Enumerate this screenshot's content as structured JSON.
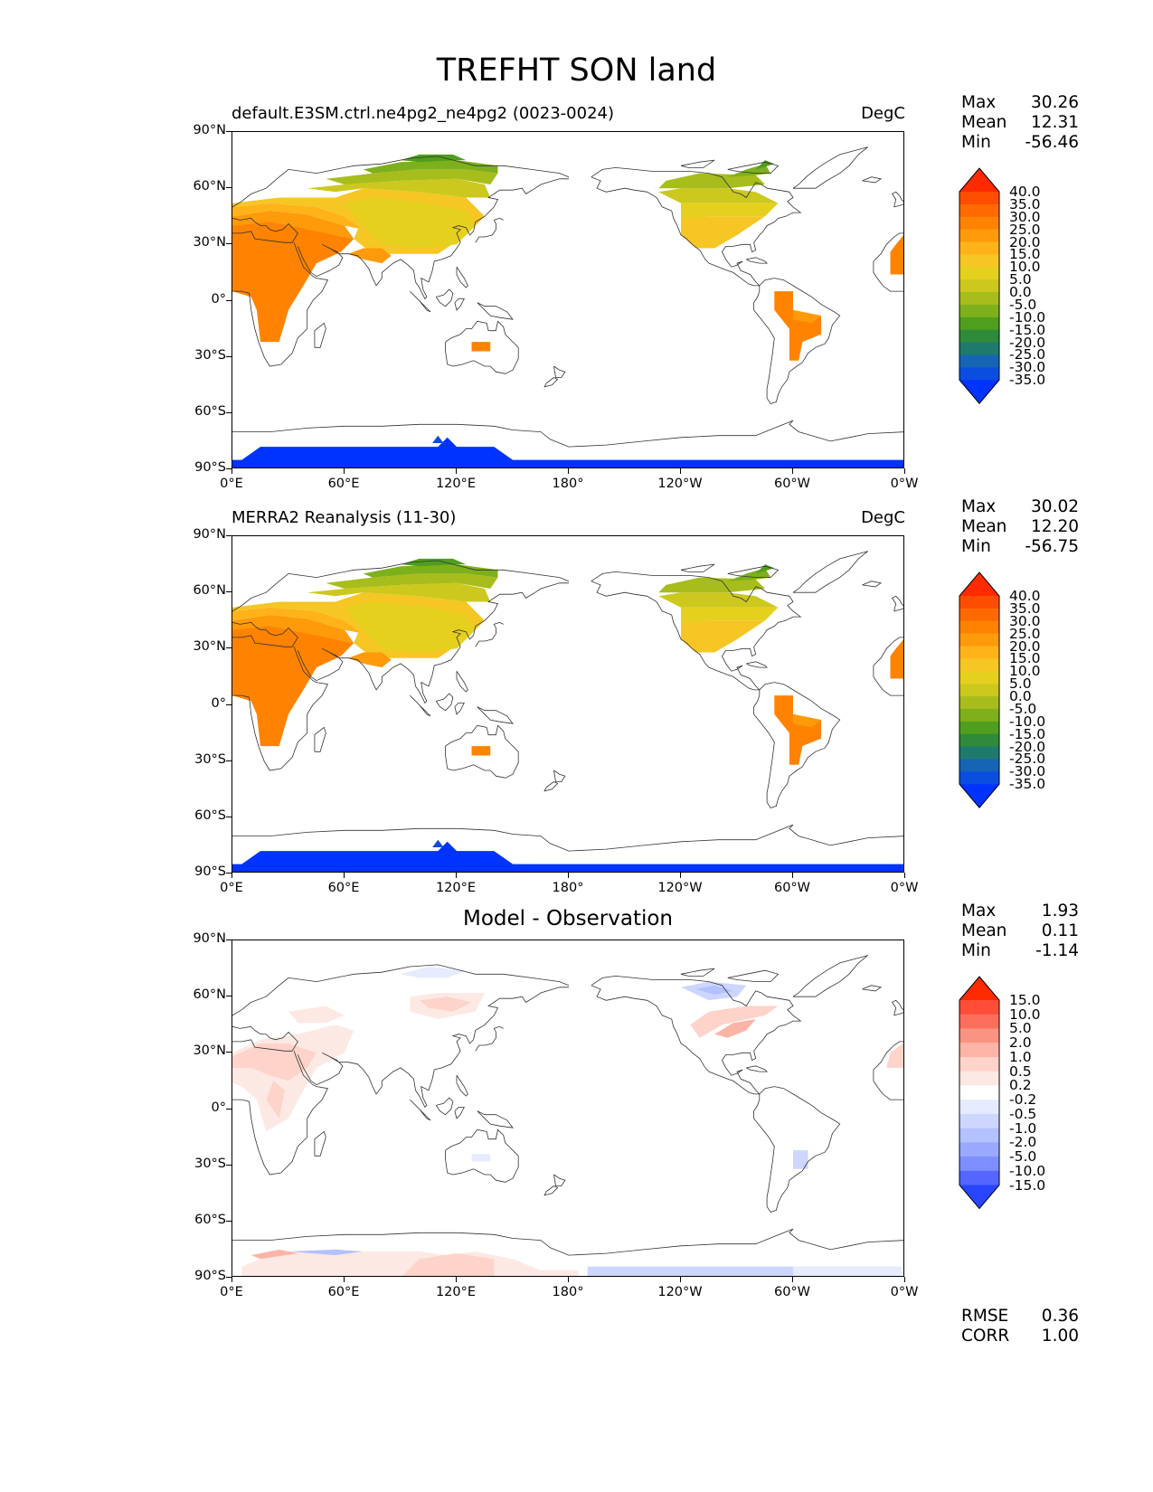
{
  "figure": {
    "title": "TREFHT SON land"
  },
  "panels": [
    {
      "id": "model",
      "title_left": "default.E3SM.ctrl.ne4pg2_ne4pg2 (0023-0024)",
      "title_right": "DegC",
      "title_center": "",
      "stats": {
        "max_label": "Max",
        "max": "30.26",
        "mean_label": "Mean",
        "mean": "12.31",
        "min_label": "Min",
        "min": "-56.46"
      },
      "colorbar_levels": [
        "40.0",
        "35.0",
        "30.0",
        "25.0",
        "20.0",
        "15.0",
        "10.0",
        "5.0",
        "0.0",
        "-5.0",
        "-10.0",
        "-15.0",
        "-20.0",
        "-25.0",
        "-30.0",
        "-35.0"
      ]
    },
    {
      "id": "obs",
      "title_left": "MERRA2 Reanalysis (11-30)",
      "title_right": "DegC",
      "title_center": "",
      "stats": {
        "max_label": "Max",
        "max": "30.02",
        "mean_label": "Mean",
        "mean": "12.20",
        "min_label": "Min",
        "min": "-56.75"
      },
      "colorbar_levels": [
        "40.0",
        "35.0",
        "30.0",
        "25.0",
        "20.0",
        "15.0",
        "10.0",
        "5.0",
        "0.0",
        "-5.0",
        "-10.0",
        "-15.0",
        "-20.0",
        "-25.0",
        "-30.0",
        "-35.0"
      ]
    },
    {
      "id": "diff",
      "title_left": "",
      "title_right": "",
      "title_center": "Model - Observation",
      "stats": {
        "max_label": "Max",
        "max": "1.93",
        "mean_label": "Mean",
        "mean": "0.11",
        "min_label": "Min",
        "min": "-1.14"
      },
      "colorbar_levels": [
        "15.0",
        "10.0",
        "5.0",
        "2.0",
        "1.0",
        "0.5",
        "0.2",
        "-0.2",
        "-0.5",
        "-1.0",
        "-2.0",
        "-5.0",
        "-10.0",
        "-15.0"
      ],
      "metrics": {
        "rmse_label": "RMSE",
        "rmse": "0.36",
        "corr_label": "CORR",
        "corr": "1.00"
      }
    }
  ],
  "axes": {
    "y_ticks": [
      "90°N",
      "60°N",
      "30°N",
      "0°",
      "30°S",
      "60°S",
      "90°S"
    ],
    "x_ticks": [
      "0°E",
      "60°E",
      "120°E",
      "180°",
      "120°W",
      "60°W",
      "0°W"
    ]
  },
  "colors": {
    "temp_scale": [
      "#ff2a00",
      "#ff4d00",
      "#ff6a00",
      "#ff8300",
      "#ff9a0a",
      "#ffb319",
      "#f5c624",
      "#e6d01e",
      "#ccc81e",
      "#a7bd1c",
      "#7eb01c",
      "#4f9e1e",
      "#2f8a3c",
      "#1f7a6e",
      "#1565b4",
      "#0a4ee0",
      "#0033ff"
    ],
    "diff_scale": [
      "#ff2a00",
      "#ff4d38",
      "#fb6e5c",
      "#f99382",
      "#fbb4a6",
      "#fdd3ca",
      "#fde9e4",
      "#ffffff",
      "#e6ebff",
      "#cdd6ff",
      "#b4c1ff",
      "#9aa9ff",
      "#7d8fff",
      "#5466ff",
      "#2a45ff",
      "#0033ff"
    ]
  }
}
